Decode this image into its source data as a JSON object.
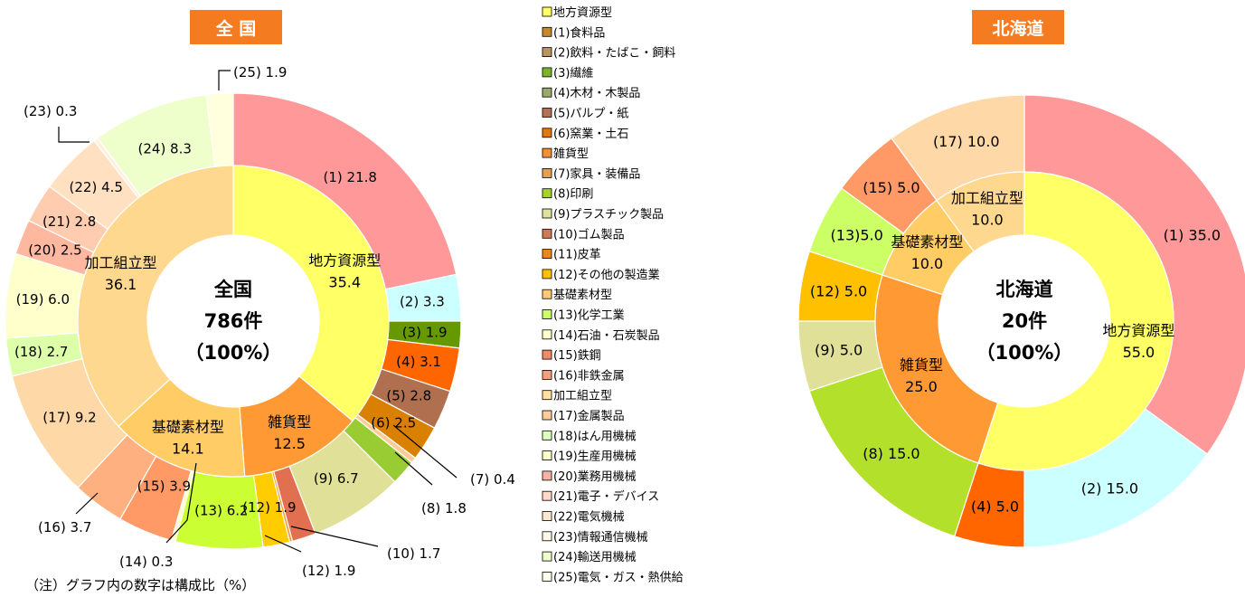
{
  "colors": {
    "badge": "#f47b20",
    "ring_stroke": "#ffffff",
    "leader": "#000000"
  },
  "legend": [
    {
      "label": "地方資源型",
      "color": "#ffff66"
    },
    {
      "label": "(1)食料品",
      "color": "#c8892e"
    },
    {
      "label": "(2)飲料・たばこ・飼料",
      "color": "#b8955a"
    },
    {
      "label": "(3)繊維",
      "color": "#7db32b"
    },
    {
      "label": "(4)木材・木製品",
      "color": "#9aaa6a"
    },
    {
      "label": "(5)パルプ・紙",
      "color": "#b0725a"
    },
    {
      "label": "(6)窯業・土石",
      "color": "#e07a10"
    },
    {
      "label": "雑貨型",
      "color": "#f0903a"
    },
    {
      "label": "(7)家具・装備品",
      "color": "#e8a050"
    },
    {
      "label": "(8)印刷",
      "color": "#a6d32b"
    },
    {
      "label": "(9)プラスチック製品",
      "color": "#e0e0a0"
    },
    {
      "label": "(10)ゴム製品",
      "color": "#d07858"
    },
    {
      "label": "(11)皮革",
      "color": "#e88a1a"
    },
    {
      "label": "(12)その他の製造業",
      "color": "#ffc000"
    },
    {
      "label": "基礎素材型",
      "color": "#ffc878"
    },
    {
      "label": "(13)化学工業",
      "color": "#ccff66"
    },
    {
      "label": "(14)石油・石炭製品",
      "color": "#ffffcc"
    },
    {
      "label": "(15)鉄鋼",
      "color": "#f08a6a"
    },
    {
      "label": "(16)非鉄金属",
      "color": "#f4a080"
    },
    {
      "label": "加工組立型",
      "color": "#ffe0a0"
    },
    {
      "label": "(17)金属製品",
      "color": "#ffcc99"
    },
    {
      "label": "(18)はん用機械",
      "color": "#ddffbb"
    },
    {
      "label": "(19)生産用機械",
      "color": "#ffffcc"
    },
    {
      "label": "(20)業務用機械",
      "color": "#f4b4a4"
    },
    {
      "label": "(21)電子・デバイス",
      "color": "#ffd8c8"
    },
    {
      "label": "(22)電気機械",
      "color": "#ffe8d0"
    },
    {
      "label": "(23)情報通信機械",
      "color": "#fff8e8"
    },
    {
      "label": "(24)輸送用機械",
      "color": "#eeffcc"
    },
    {
      "label": "(25)電気・ガス・熱供給",
      "color": "#ffffee"
    }
  ],
  "chart_data": [
    {
      "type": "pie",
      "title": "全 国",
      "center": {
        "line1": "全国",
        "line2": "786件",
        "line3": "（100%）"
      },
      "inner": [
        {
          "name": "地方資源型",
          "value": 35.4,
          "label": "35.4",
          "color": "#ffff66"
        },
        {
          "name": "雑貨型",
          "value": 12.5,
          "label": "12.5",
          "color": "#ff9933"
        },
        {
          "name": "基礎素材型",
          "value": 14.1,
          "label": "14.1",
          "color": "#ffcc66"
        },
        {
          "name": "加工組立型",
          "value": 36.1,
          "label": "36.1",
          "color": "#ffd890"
        }
      ],
      "outer": [
        {
          "value": 21.8,
          "label": "(1) 21.8",
          "color": "#ff9999"
        },
        {
          "value": 3.3,
          "label": "(2) 3.3",
          "color": "#ccffff"
        },
        {
          "value": 1.9,
          "label": "(3) 1.9",
          "color": "#669900"
        },
        {
          "value": 3.1,
          "label": "(4) 3.1",
          "color": "#ff6600"
        },
        {
          "value": 2.8,
          "label": "(5) 2.8",
          "color": "#b07050"
        },
        {
          "value": 2.5,
          "label": "(6) 2.5",
          "color": "#d98000"
        },
        {
          "value": 0.4,
          "label": "(7) 0.4",
          "color": "#ffcc99"
        },
        {
          "value": 1.8,
          "label": "(8) 1.8",
          "color": "#99cc33"
        },
        {
          "value": 6.7,
          "label": "(9) 6.7",
          "color": "#e0e099"
        },
        {
          "value": 1.7,
          "label": "(10) 1.7",
          "color": "#e07050"
        },
        {
          "value": 0.2,
          "label": "",
          "color": "#ff9933"
        },
        {
          "value": 1.9,
          "label": "(12) 1.9",
          "color": "#ffcc00"
        },
        {
          "value": 6.2,
          "label": "(13) 6.2",
          "color": "#ccff33"
        },
        {
          "value": 0.3,
          "label": "(14) 0.3",
          "color": "#ffffcc"
        },
        {
          "value": 3.9,
          "label": "(15) 3.9",
          "color": "#ff9966"
        },
        {
          "value": 3.7,
          "label": "(16) 3.7",
          "color": "#ffb080"
        },
        {
          "value": 9.2,
          "label": "(17) 9.2",
          "color": "#ffd8a8"
        },
        {
          "value": 2.7,
          "label": "(18) 2.7",
          "color": "#ddffaa"
        },
        {
          "value": 6.0,
          "label": "(19) 6.0",
          "color": "#ffffcc"
        },
        {
          "value": 2.5,
          "label": "(20) 2.5",
          "color": "#ffb8a0"
        },
        {
          "value": 2.8,
          "label": "(21) 2.8",
          "color": "#ffccb0"
        },
        {
          "value": 4.5,
          "label": "(22) 4.5",
          "color": "#ffe0c0"
        },
        {
          "value": 0.3,
          "label": "(23) 0.3",
          "color": "#fff0e0"
        },
        {
          "value": 8.3,
          "label": "(24) 8.3",
          "color": "#eeffcc"
        },
        {
          "value": 1.9,
          "label": "(25) 1.9",
          "color": "#ffffdd"
        }
      ]
    },
    {
      "type": "pie",
      "title": "北海道",
      "center": {
        "line1": "北海道",
        "line2": "20件",
        "line3": "（100%）"
      },
      "inner": [
        {
          "name": "地方資源型",
          "value": 55.0,
          "label": "55.0",
          "color": "#ffff66"
        },
        {
          "name": "雑貨型",
          "value": 25.0,
          "label": "25.0",
          "color": "#ff9933"
        },
        {
          "name": "基礎素材型",
          "value": 10.0,
          "label": "10.0",
          "color": "#ffcc66"
        },
        {
          "name": "加工組立型",
          "value": 10.0,
          "label": "10.0",
          "color": "#ffd890"
        }
      ],
      "outer": [
        {
          "value": 35.0,
          "label": "(1) 35.0",
          "color": "#ff9999"
        },
        {
          "value": 15.0,
          "label": "(2) 15.0",
          "color": "#ccffff"
        },
        {
          "value": 5.0,
          "label": "(4) 5.0",
          "color": "#ff6600"
        },
        {
          "value": 15.0,
          "label": "(8) 15.0",
          "color": "#b3e02b"
        },
        {
          "value": 5.0,
          "label": "(9) 5.0",
          "color": "#e0e099"
        },
        {
          "value": 5.0,
          "label": "(12) 5.0",
          "color": "#ffc000"
        },
        {
          "value": 5.0,
          "label": "(13)5.0",
          "color": "#ccff66"
        },
        {
          "value": 5.0,
          "label": "(15) 5.0",
          "color": "#ff9966"
        },
        {
          "value": 10.0,
          "label": "(17) 10.0",
          "color": "#ffd8a8"
        }
      ]
    }
  ],
  "callouts_national": [
    "(25) 1.9",
    "(23) 0.3",
    "(7) 0.4",
    "(8) 1.8",
    "(10) 1.7",
    "(12) 1.9",
    "(14) 0.3",
    "(16) 3.7"
  ],
  "note": "（注）グラフ内の数字は構成比（%）"
}
